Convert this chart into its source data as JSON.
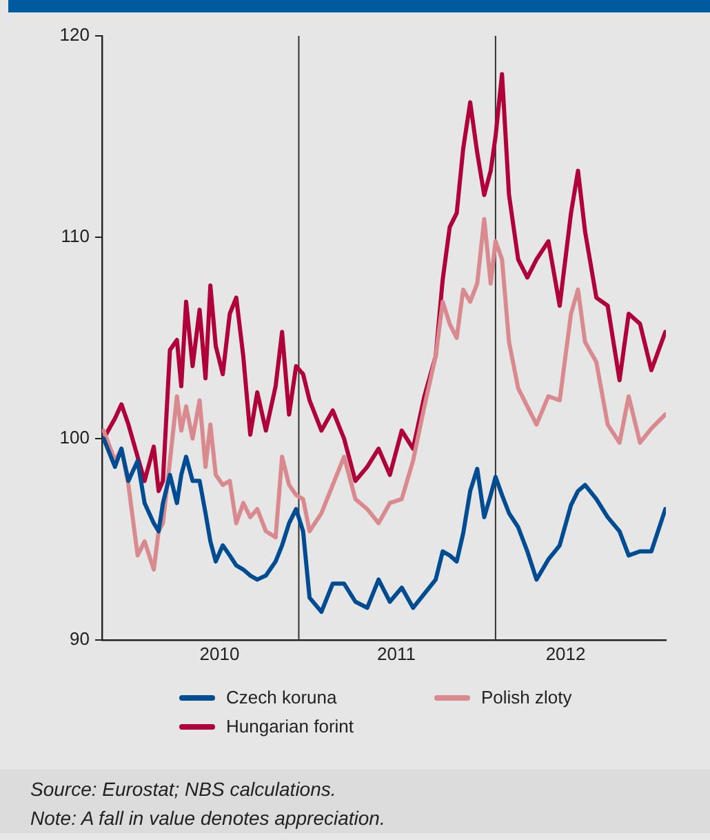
{
  "chart_data": {
    "type": "line",
    "x": [
      "2010-01-04",
      "2010-01-25",
      "2010-02-06",
      "2010-02-19",
      "2010-03-08",
      "2010-03-21",
      "2010-04-07",
      "2010-04-16",
      "2010-04-24",
      "2010-05-07",
      "2010-05-20",
      "2010-05-28",
      "2010-06-06",
      "2010-06-18",
      "2010-07-01",
      "2010-07-12",
      "2010-07-21",
      "2010-07-31",
      "2010-08-13",
      "2010-08-26",
      "2010-09-07",
      "2010-09-20",
      "2010-10-03",
      "2010-10-16",
      "2010-11-01",
      "2010-11-19",
      "2010-12-01",
      "2010-12-14",
      "2010-12-27",
      "2011-01-09",
      "2011-01-21",
      "2011-02-12",
      "2011-03-05",
      "2011-03-26",
      "2011-04-16",
      "2011-05-08",
      "2011-05-29",
      "2011-06-19",
      "2011-07-11",
      "2011-08-01",
      "2011-08-22",
      "2011-09-12",
      "2011-09-25",
      "2011-10-08",
      "2011-10-21",
      "2011-11-02",
      "2011-11-15",
      "2011-11-28",
      "2011-12-11",
      "2011-12-23",
      "2012-01-01",
      "2012-01-13",
      "2012-01-26",
      "2012-02-12",
      "2012-02-29",
      "2012-03-17",
      "2012-04-08",
      "2012-04-29",
      "2012-05-20",
      "2012-06-02",
      "2012-06-15",
      "2012-07-06",
      "2012-07-27",
      "2012-08-18",
      "2012-09-04",
      "2012-09-25",
      "2012-10-16",
      "2012-11-11"
    ],
    "series": [
      {
        "name": "Czech koruna",
        "color": "#004c93",
        "values": [
          100.0,
          98.6,
          99.5,
          97.9,
          98.9,
          96.8,
          95.8,
          95.4,
          96.8,
          98.2,
          96.8,
          98.2,
          99.1,
          97.9,
          97.9,
          96.3,
          94.9,
          93.9,
          94.7,
          94.2,
          93.7,
          93.5,
          93.2,
          93.0,
          93.2,
          93.9,
          94.7,
          95.8,
          96.5,
          95.4,
          92.1,
          91.4,
          92.8,
          92.8,
          91.9,
          91.6,
          93.0,
          91.9,
          92.6,
          91.6,
          92.3,
          93.0,
          94.4,
          94.2,
          93.9,
          95.3,
          97.4,
          98.5,
          96.1,
          97.2,
          98.1,
          97.2,
          96.3,
          95.6,
          94.4,
          93.0,
          94.0,
          94.7,
          96.7,
          97.4,
          97.7,
          97.0,
          96.1,
          95.4,
          94.2,
          94.4,
          94.4,
          96.5
        ]
      },
      {
        "name": "Polish zloty",
        "color": "#d98a8f",
        "values": [
          100.4,
          98.9,
          99.5,
          97.7,
          94.2,
          94.9,
          93.5,
          95.4,
          95.8,
          98.9,
          102.1,
          100.4,
          101.6,
          100.0,
          101.9,
          98.6,
          100.7,
          98.2,
          97.7,
          97.9,
          95.8,
          96.8,
          96.1,
          96.5,
          95.4,
          95.1,
          99.1,
          97.7,
          97.2,
          97.0,
          95.4,
          96.3,
          97.7,
          99.1,
          97.0,
          96.5,
          95.8,
          96.8,
          97.0,
          98.9,
          101.6,
          104.1,
          106.8,
          105.7,
          105.0,
          107.4,
          106.8,
          107.7,
          110.9,
          107.7,
          109.8,
          108.9,
          104.8,
          102.5,
          101.6,
          100.7,
          102.1,
          101.9,
          106.2,
          107.4,
          104.8,
          103.8,
          100.7,
          99.8,
          102.1,
          99.8,
          100.5,
          101.2
        ]
      },
      {
        "name": "Hungarian forint",
        "color": "#b0003a",
        "values": [
          100.0,
          101.0,
          101.7,
          100.7,
          99.1,
          97.9,
          99.6,
          97.4,
          97.9,
          104.4,
          104.9,
          102.6,
          106.8,
          103.6,
          106.4,
          103.0,
          107.6,
          104.6,
          103.2,
          106.2,
          107.0,
          104.1,
          100.2,
          102.3,
          100.4,
          102.6,
          105.3,
          101.2,
          103.6,
          103.2,
          101.9,
          100.4,
          101.4,
          100.0,
          97.9,
          98.6,
          99.5,
          98.2,
          100.4,
          99.5,
          102.1,
          104.1,
          107.9,
          110.5,
          111.2,
          114.4,
          116.7,
          114.2,
          112.1,
          113.3,
          115.0,
          118.1,
          112.1,
          108.9,
          108.0,
          108.9,
          109.8,
          106.6,
          111.2,
          113.3,
          110.3,
          107.0,
          106.6,
          102.9,
          106.2,
          105.7,
          103.4,
          105.3
        ]
      }
    ],
    "xlim": [
      "2010-01-01",
      "2012-11-12"
    ],
    "xticks": [
      {
        "value": "2010-08-07",
        "label": "2010"
      },
      {
        "value": "2011-07-01",
        "label": "2011"
      },
      {
        "value": "2012-05-10",
        "label": "2012"
      }
    ],
    "ylim": [
      90,
      120
    ],
    "yticks": [
      90,
      100,
      110,
      120
    ],
    "ref_lines": [
      {
        "axis": "x",
        "value": "2011-01-01",
        "color": "#333333"
      },
      {
        "axis": "x",
        "value": "2012-01-01",
        "color": "#333333"
      }
    ],
    "grid": false,
    "legend": "bottom",
    "marker": "none",
    "line_style": "solid",
    "annotations": [
      "Source: Eurostat; NBS calculations.",
      "Note: A fall in value denotes appreciation."
    ]
  }
}
